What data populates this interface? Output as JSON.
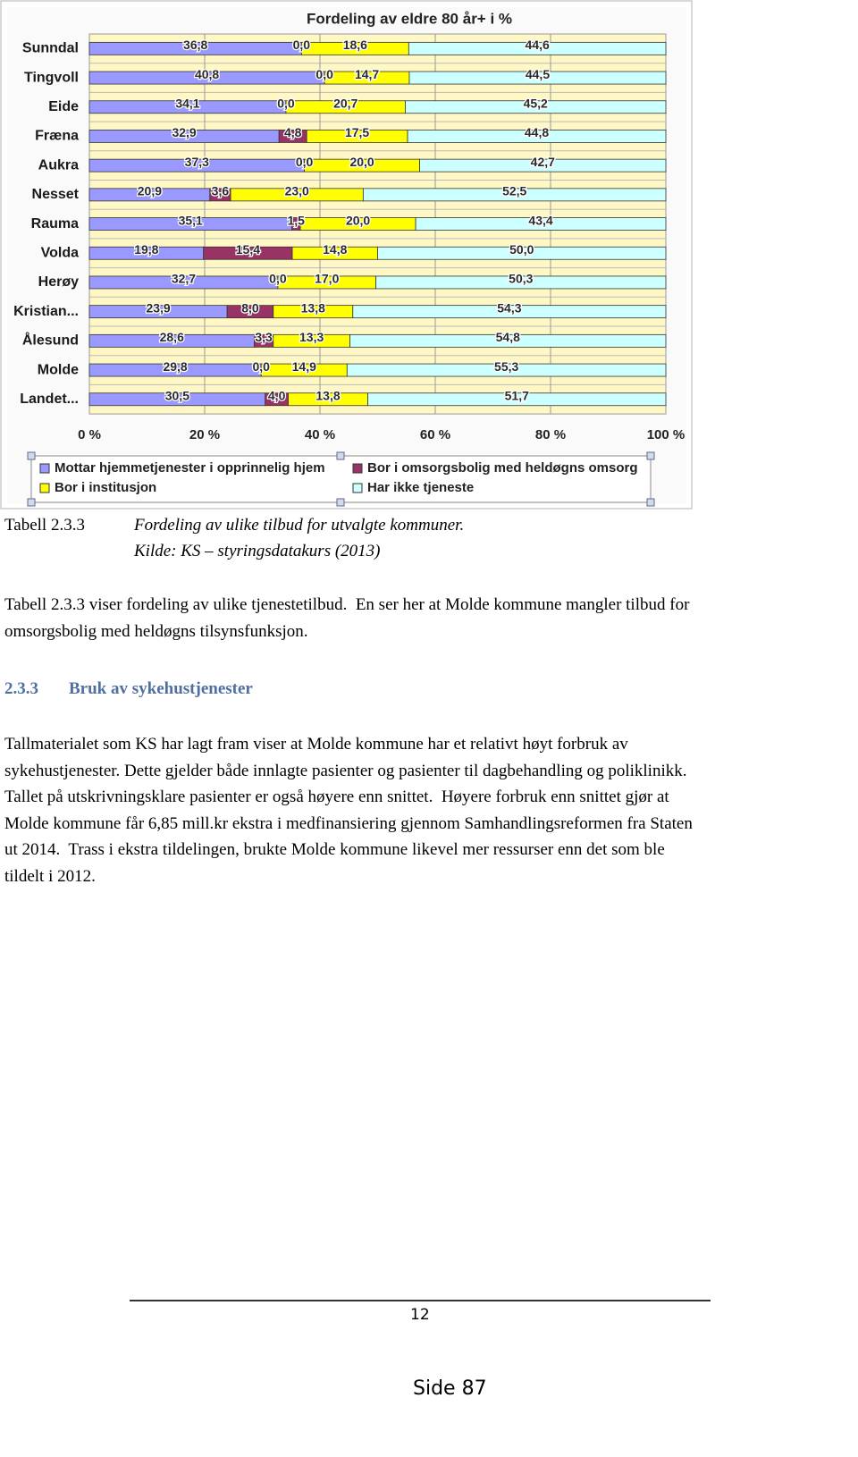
{
  "chart_data": {
    "type": "stacked-barh",
    "title": "Fordeling av eldre 80 år+  i %",
    "categories": [
      "Sunndal",
      "Tingvoll",
      "Eide",
      "Fræna",
      "Aukra",
      "Nesset",
      "Rauma",
      "Volda",
      "Herøy",
      "Kristian...",
      "Ålesund",
      "Molde",
      "Landet..."
    ],
    "series": [
      {
        "name": "Mottar hjemmetjenester i opprinnelig hjem",
        "color": "#9999ff",
        "values": [
          36.8,
          40.8,
          34.1,
          32.9,
          37.3,
          20.9,
          35.1,
          19.8,
          32.7,
          23.9,
          28.6,
          29.8,
          30.5
        ],
        "value_labels": [
          "36,8",
          "40,8",
          "34,1",
          "32,9",
          "37,3",
          "20,9",
          "35,1",
          "19,8",
          "32,7",
          "23,9",
          "28,6",
          "29,8",
          "30,5"
        ]
      },
      {
        "name": "Bor i omsorgsbolig med heldøgns omsorg",
        "color": "#993366",
        "values": [
          0.0,
          0.0,
          0.0,
          4.8,
          0.0,
          3.6,
          1.5,
          15.4,
          0.0,
          8.0,
          3.3,
          0.0,
          4.0
        ],
        "value_labels": [
          "0,0",
          "0,0",
          "0,0",
          "4,8",
          "0,0",
          "3,6",
          "1,5",
          "15,4",
          "0,0",
          "8,0",
          "3,3",
          "0,0",
          "4,0"
        ]
      },
      {
        "name": "Bor i institusjon",
        "color": "#ffff00",
        "values": [
          18.6,
          14.7,
          20.7,
          17.5,
          20.0,
          23.0,
          20.0,
          14.8,
          17.0,
          13.8,
          13.3,
          14.9,
          13.8
        ],
        "value_labels": [
          "18,6",
          "14,7",
          "20,7",
          "17,5",
          "20,0",
          "23,0",
          "20,0",
          "14,8",
          "17,0",
          "13,8",
          "13,3",
          "14,9",
          "13,8"
        ]
      },
      {
        "name": "Har ikke tjeneste",
        "color": "#ccffff",
        "values": [
          44.6,
          44.5,
          45.2,
          44.8,
          42.7,
          52.5,
          43.4,
          50.0,
          50.3,
          54.3,
          54.8,
          55.3,
          51.7
        ],
        "value_labels": [
          "44,6",
          "44,5",
          "45,2",
          "44,8",
          "42,7",
          "52,5",
          "43,4",
          "50,0",
          "50,3",
          "54,3",
          "54,8",
          "55,3",
          "51,7"
        ]
      }
    ],
    "xlim": [
      0,
      100
    ],
    "xticks": [
      {
        "value": 0,
        "label": "0 %"
      },
      {
        "value": 20,
        "label": "20 %"
      },
      {
        "value": 40,
        "label": "40 %"
      },
      {
        "value": 60,
        "label": "60 %"
      },
      {
        "value": 80,
        "label": "80 %"
      },
      {
        "value": 100,
        "label": "100 %"
      }
    ],
    "grid": true,
    "legend": "bottom"
  },
  "caption": {
    "label": "Tabell 2.3.3",
    "lines": [
      "Fordeling av ulike tilbud for utvalgte kommuner.",
      "Kilde: KS – styringsdatakurs (2013)"
    ]
  },
  "paragraph_1": [
    "Tabell 2.3.3 viser fordeling av ulike tjenestetilbud.  En ser her at Molde kommune mangler tilbud for",
    "omsorgsbolig med heldøgns tilsynsfunksjon."
  ],
  "heading": {
    "number": "2.3.3",
    "title": "Bruk av sykehustjenester"
  },
  "paragraph_2": [
    "Tallmaterialet som KS har lagt fram viser at Molde kommune har et relativt høyt forbruk av",
    "sykehustjenester. Dette gjelder både innlagte pasienter og pasienter til dagbehandling og poliklinikk.",
    "Tallet på utskrivningsklare pasienter er også høyere enn snittet.  Høyere forbruk enn snittet gjør at",
    "Molde kommune får 6,85 mill.kr ekstra i medfinansiering gjennom Samhandlingsreformen fra Staten",
    "ut 2014.  Trass i ekstra tildelingen, brukte Molde kommune likevel mer ressurser enn det som ble",
    "tildelt i 2012."
  ],
  "footer": {
    "page_number": "12",
    "side": "Side 87"
  }
}
